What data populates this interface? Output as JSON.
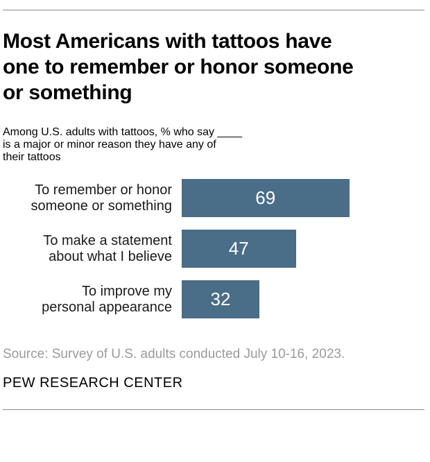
{
  "header": {
    "title_lines": [
      "Most Americans with tattoos have",
      "one to remember or honor someone",
      "or something"
    ],
    "subtitle_lines": [
      "Among U.S. adults with tattoos, % who say ____",
      "is a major or minor reason they have any of",
      "their tattoos"
    ]
  },
  "footer": {
    "source": "Source: Survey of U.S. adults conducted July 10-16, 2023.",
    "brand": "PEW RESEARCH CENTER"
  },
  "colors": {
    "bar_fill": "#4a6d88",
    "value_text": "#ffffff",
    "title": "#000000",
    "subtitle": "#75787b",
    "label": "#1a1a1a",
    "source": "#9a9a9a",
    "rule": "#8a8a8a"
  },
  "chart_data": {
    "type": "bar",
    "orientation": "horizontal",
    "title": "Most Americans with tattoos have one to remember or honor someone or something",
    "subtitle": "Among U.S. adults with tattoos, % who say ____ is a major or minor reason they have any of their tattoos",
    "categories": [
      "To remember or honor someone or something",
      "To make a statement about what I believe",
      "To improve my personal appearance"
    ],
    "values": [
      69,
      47,
      32
    ],
    "xlim": [
      0,
      100
    ],
    "value_label_position": "inside-center",
    "grid": false,
    "legend": false,
    "rows": [
      {
        "label_lines": [
          "To remember or honor",
          "someone or something"
        ],
        "value": 69
      },
      {
        "label_lines": [
          "To make a statement",
          "about what I believe"
        ],
        "value": 47
      },
      {
        "label_lines": [
          "To improve my",
          "personal appearance"
        ],
        "value": 32
      }
    ]
  }
}
